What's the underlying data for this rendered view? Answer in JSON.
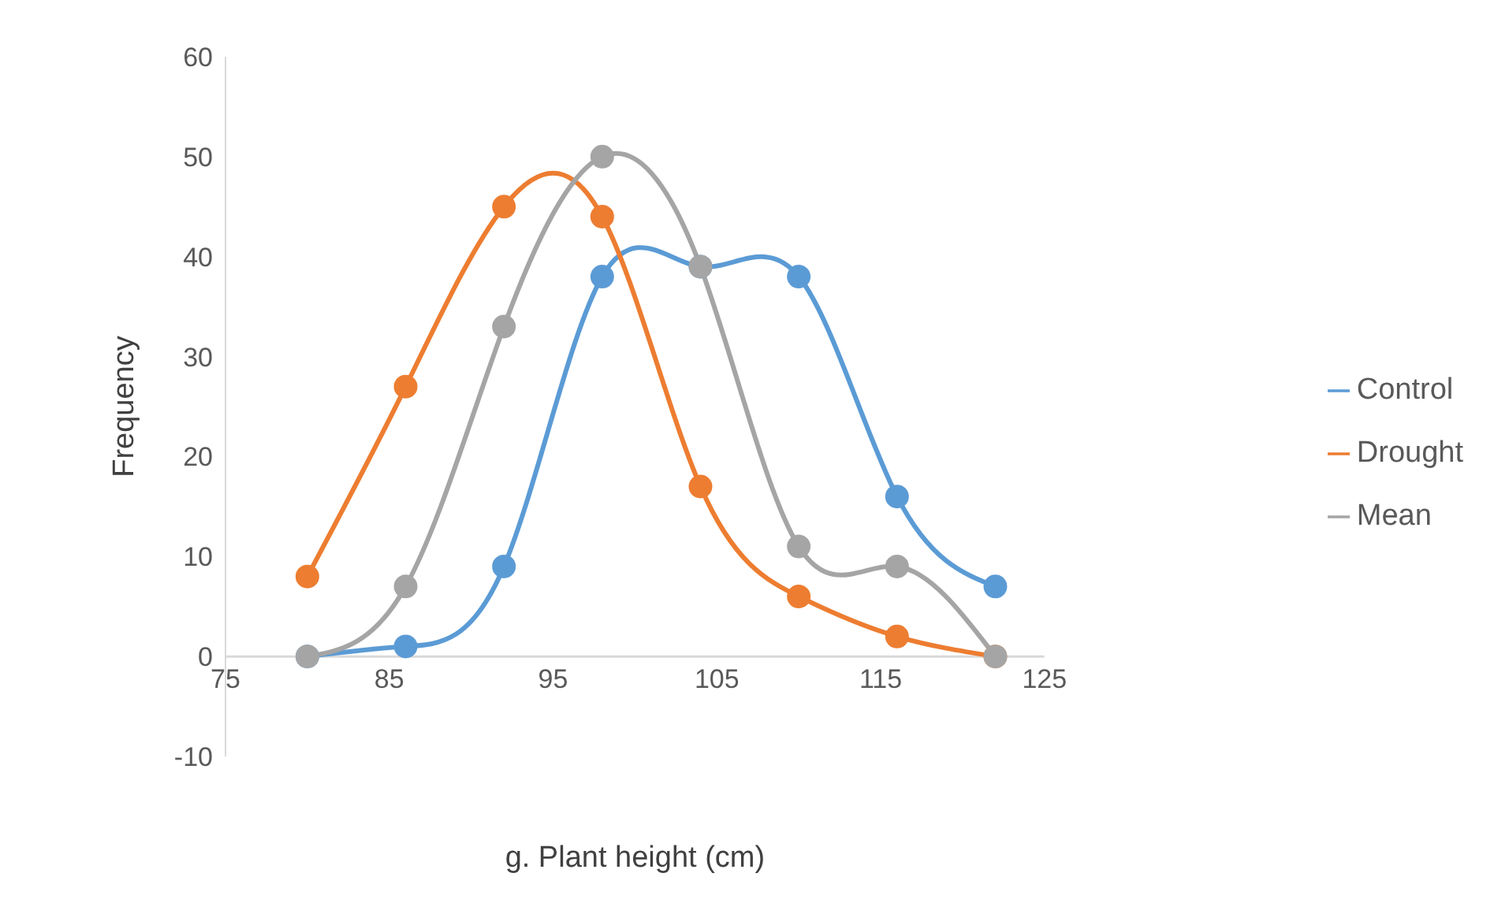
{
  "chart_data": {
    "type": "line",
    "xlabel": "g. Plant height (cm)",
    "ylabel": "Frequency",
    "x": [
      80,
      86,
      92,
      98,
      104,
      110,
      116,
      122
    ],
    "series": [
      {
        "name": "Control",
        "color": "#5b9bd5",
        "values": [
          0,
          1,
          9,
          38,
          39,
          38,
          16,
          7
        ]
      },
      {
        "name": "Drought",
        "color": "#ed7d31",
        "values": [
          8,
          27,
          45,
          44,
          17,
          6,
          2,
          0
        ]
      },
      {
        "name": "Mean",
        "color": "#a5a5a5",
        "values": [
          0,
          7,
          33,
          50,
          39,
          11,
          9,
          0
        ]
      }
    ],
    "xlim": [
      75,
      125
    ],
    "xticks": [
      75,
      85,
      95,
      105,
      115,
      125
    ],
    "ylim": [
      -10,
      60
    ],
    "yticks": [
      -10,
      0,
      10,
      20,
      30,
      40,
      50,
      60
    ],
    "legend": "right",
    "marker": "circle",
    "line_style": "solid"
  }
}
